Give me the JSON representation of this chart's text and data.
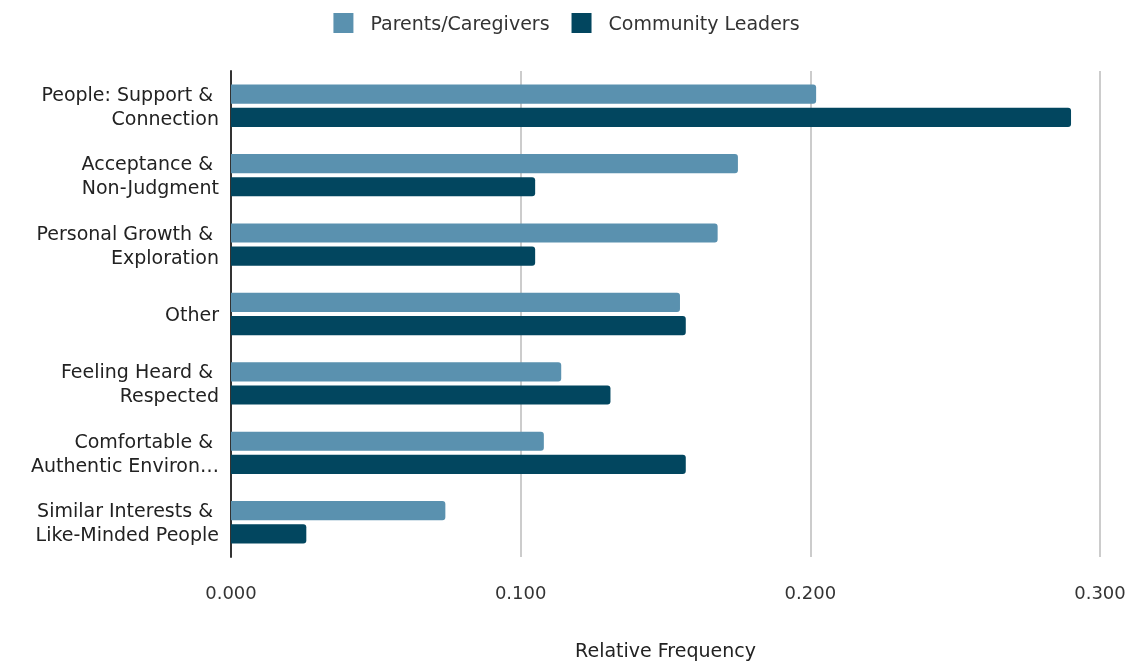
{
  "chart_data": {
    "type": "bar",
    "orientation": "horizontal",
    "categories": [
      "People: Support & Connection",
      "Acceptance & Non-Judgment",
      "Personal Growth & Exploration",
      "Other",
      "Feeling Heard & Respected",
      "Comfortable & Authentic Environ…",
      "Similar Interests & Like-Minded People"
    ],
    "series": [
      {
        "name": "Parents/Caregivers",
        "color": "#5a91af",
        "values": [
          0.202,
          0.175,
          0.168,
          0.155,
          0.114,
          0.108,
          0.074
        ]
      },
      {
        "name": "Community Leaders",
        "color": "#02465f",
        "values": [
          0.29,
          0.105,
          0.105,
          0.157,
          0.131,
          0.157,
          0.026
        ]
      }
    ],
    "xlabel": "Relative Frequency",
    "xlim": [
      0,
      0.3
    ],
    "xticks": [
      {
        "value": 0,
        "label": "0.000"
      },
      {
        "value": 0.1,
        "label": "0.100"
      },
      {
        "value": 0.2,
        "label": "0.200"
      },
      {
        "value": 0.3,
        "label": "0.300"
      }
    ],
    "grid": "x",
    "legend": "top"
  }
}
